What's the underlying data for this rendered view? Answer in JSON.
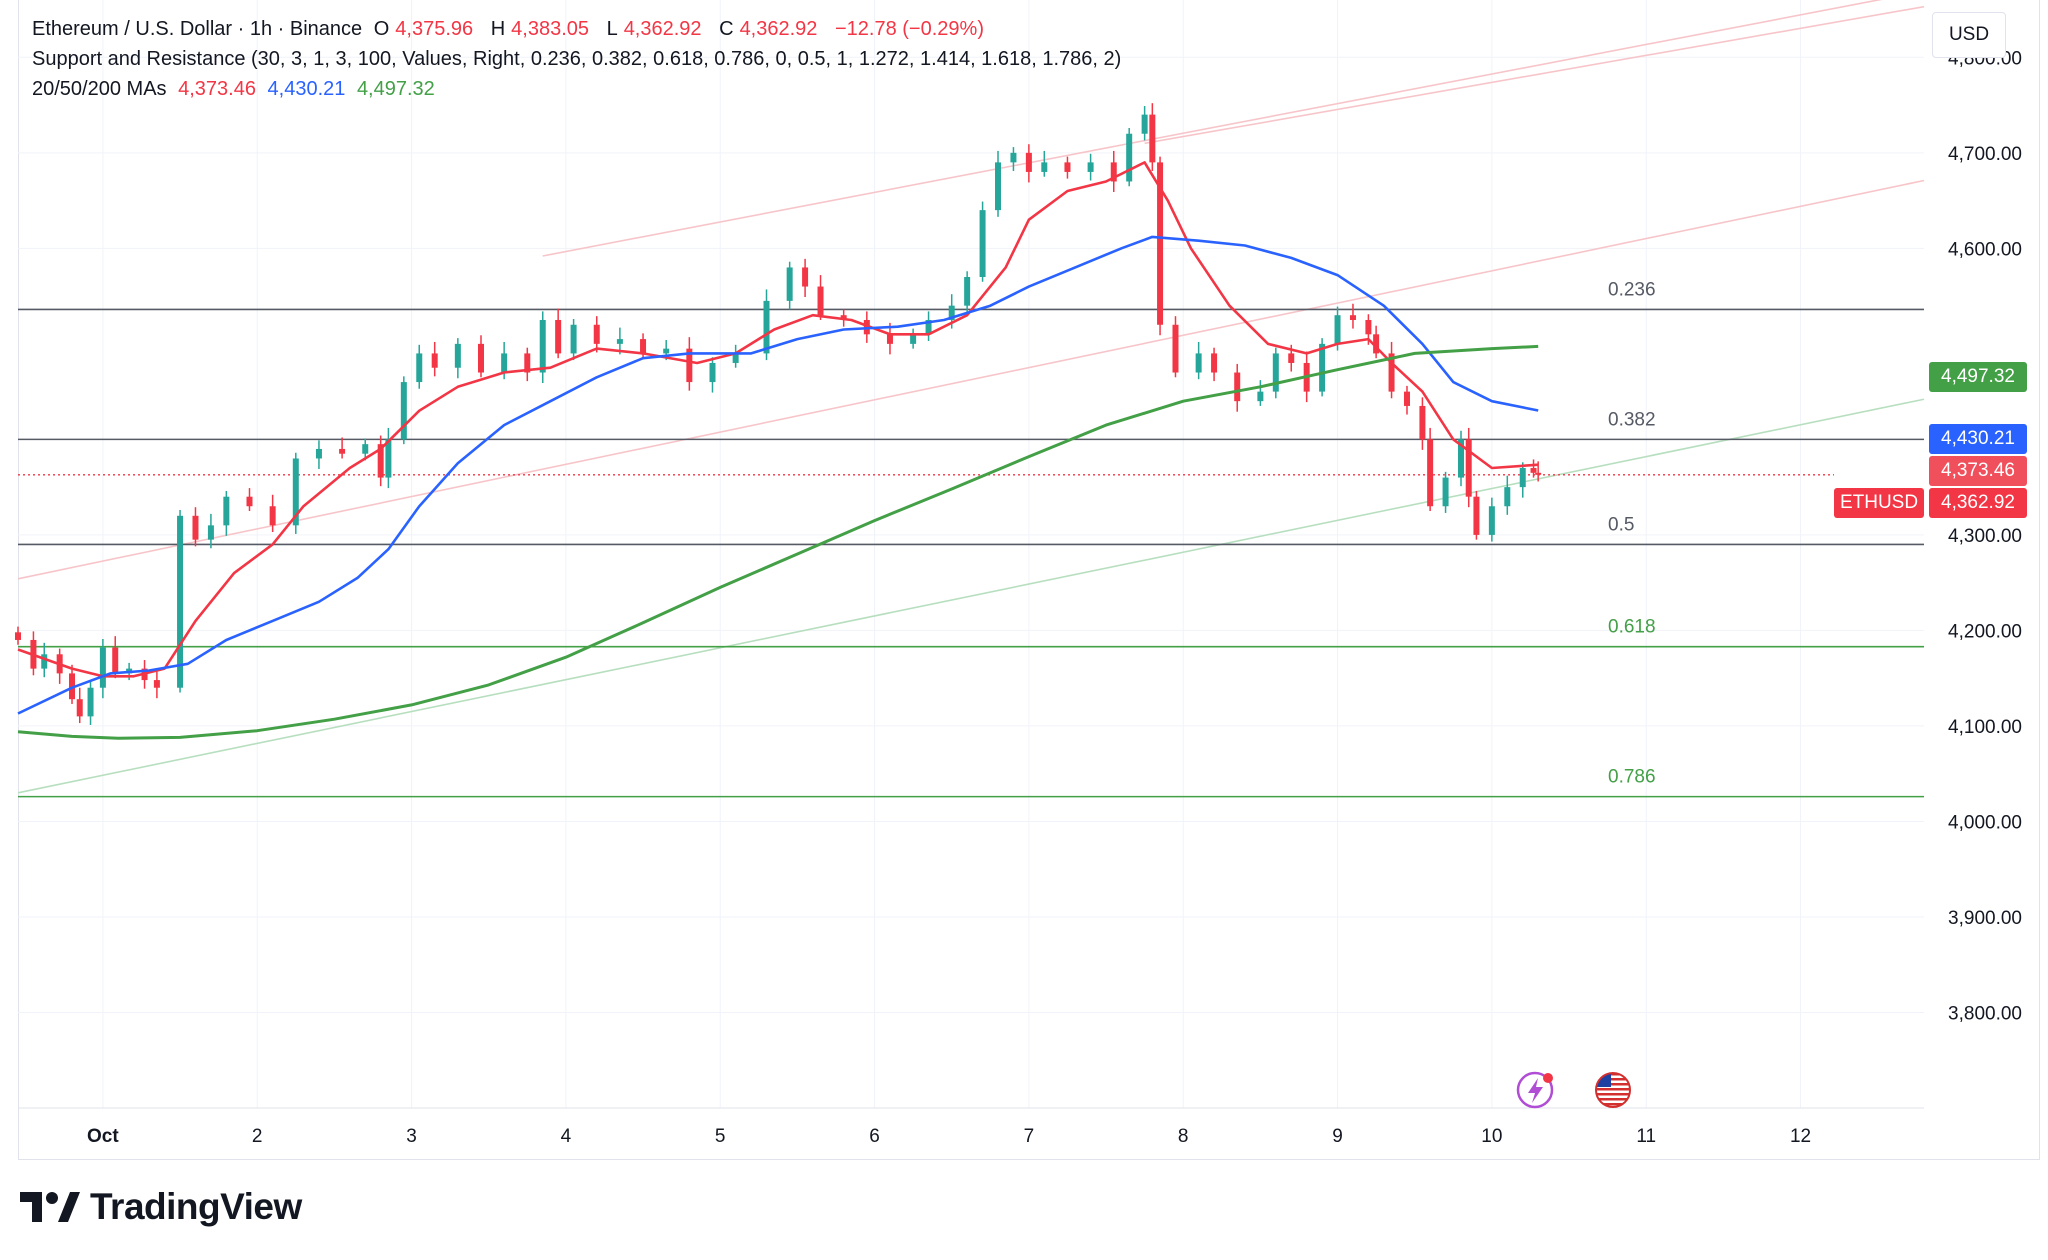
{
  "header": {
    "symbol": "Ethereum / U.S. Dollar · 1h · Binance",
    "o_label": "O",
    "o_value": "4,375.96",
    "h_label": "H",
    "h_value": "4,383.05",
    "l_label": "L",
    "l_value": "4,362.92",
    "c_label": "C",
    "c_value": "4,362.92",
    "change": "−12.78 (−0.29%)",
    "indicator": "Support and Resistance (30, 3, 1, 3, 100, Values, Right, 0.236, 0.382, 0.618, 0.786, 0, 0.5, 1, 1.272, 1.414, 1.618, 1.786, 2)",
    "ma_label": "20/50/200 MAs",
    "ma20_value": "4,373.46",
    "ma50_value": "4,430.21",
    "ma200_value": "4,497.32"
  },
  "currency": "USD",
  "price_badges": {
    "ma200": "4,497.32",
    "ma50": "4,430.21",
    "ma20": "4,373.46",
    "symbol_tag": "ETHUSD",
    "last": "4,362.92"
  },
  "brand": {
    "name": "TradingView"
  },
  "colors": {
    "up": "#26a69a",
    "down": "#f23645",
    "ma20": "#f23645",
    "ma50": "#2962ff",
    "ma200": "#43a047",
    "fib_gray": "#555a64",
    "fib_green": "#43a047"
  },
  "icons": [
    "lightning-icon",
    "us-flag-icon",
    "tradingview-logo-icon"
  ],
  "chart_data": {
    "type": "candlestick",
    "title": "Ethereum / U.S. Dollar · 1h · Binance",
    "yaxis": {
      "ylim": [
        3700,
        4860
      ],
      "ticks": [
        4800,
        4700,
        4600,
        4300,
        4200,
        4100,
        4000,
        3900,
        3800
      ],
      "tick_labels": [
        "4,800.00",
        "4,700.00",
        "4,600.00",
        "4,300.00",
        "4,200.00",
        "4,100.00",
        "4,000.00",
        "3,900.00",
        "3,800.00"
      ],
      "position": "right"
    },
    "xaxis": {
      "ticks": [
        1,
        2,
        3,
        4,
        5,
        6,
        7,
        8,
        9,
        10,
        11,
        12
      ],
      "tick_labels": [
        "Oct",
        "2",
        "3",
        "4",
        "5",
        "6",
        "7",
        "8",
        "9",
        "10",
        "11",
        "12"
      ],
      "xlim": [
        0.45,
        12.8
      ]
    },
    "grid": true,
    "fib_levels": [
      {
        "label": "0.236",
        "price": 4536,
        "color": "gray"
      },
      {
        "label": "0.382",
        "price": 4400,
        "color": "gray"
      },
      {
        "label": "0.5",
        "price": 4290,
        "color": "gray"
      },
      {
        "label": "0.618",
        "price": 4183,
        "color": "green"
      },
      {
        "label": "0.786",
        "price": 4026,
        "color": "green"
      }
    ],
    "channel_lines": [
      {
        "x": [
          0.45,
          12.8
        ],
        "y": [
          4254,
          4671
        ],
        "style": "light-red"
      },
      {
        "x": [
          3.85,
          12.6
        ],
        "y": [
          4592,
          4863
        ],
        "style": "light-red"
      },
      {
        "x": [
          7.75,
          12.8
        ],
        "y": [
          4710,
          4853
        ],
        "style": "light-red"
      },
      {
        "x": [
          0.45,
          12.8
        ],
        "y": [
          4030,
          4442
        ],
        "style": "light-green"
      }
    ],
    "series": [
      {
        "name": "ETHUSD",
        "type": "candlestick",
        "points": [
          {
            "x": 0.45,
            "y": 4190
          },
          {
            "x": 0.55,
            "y": 4160
          },
          {
            "x": 0.62,
            "y": 4175
          },
          {
            "x": 0.72,
            "y": 4155
          },
          {
            "x": 0.8,
            "y": 4128
          },
          {
            "x": 0.85,
            "y": 4110
          },
          {
            "x": 0.92,
            "y": 4140
          },
          {
            "x": 1.0,
            "y": 4182
          },
          {
            "x": 1.08,
            "y": 4155
          },
          {
            "x": 1.17,
            "y": 4160
          },
          {
            "x": 1.27,
            "y": 4148
          },
          {
            "x": 1.35,
            "y": 4140
          },
          {
            "x": 1.5,
            "y": 4320
          },
          {
            "x": 1.6,
            "y": 4295
          },
          {
            "x": 1.7,
            "y": 4310
          },
          {
            "x": 1.8,
            "y": 4340
          },
          {
            "x": 1.95,
            "y": 4330
          },
          {
            "x": 2.1,
            "y": 4310
          },
          {
            "x": 2.25,
            "y": 4380
          },
          {
            "x": 2.4,
            "y": 4390
          },
          {
            "x": 2.55,
            "y": 4385
          },
          {
            "x": 2.7,
            "y": 4395
          },
          {
            "x": 2.8,
            "y": 4360
          },
          {
            "x": 2.85,
            "y": 4400
          },
          {
            "x": 2.95,
            "y": 4460
          },
          {
            "x": 3.05,
            "y": 4490
          },
          {
            "x": 3.15,
            "y": 4475
          },
          {
            "x": 3.3,
            "y": 4500
          },
          {
            "x": 3.45,
            "y": 4470
          },
          {
            "x": 3.6,
            "y": 4490
          },
          {
            "x": 3.75,
            "y": 4470
          },
          {
            "x": 3.85,
            "y": 4525
          },
          {
            "x": 3.95,
            "y": 4490
          },
          {
            "x": 4.05,
            "y": 4520
          },
          {
            "x": 4.2,
            "y": 4500
          },
          {
            "x": 4.35,
            "y": 4505
          },
          {
            "x": 4.5,
            "y": 4490
          },
          {
            "x": 4.65,
            "y": 4495
          },
          {
            "x": 4.8,
            "y": 4460
          },
          {
            "x": 4.95,
            "y": 4480
          },
          {
            "x": 5.1,
            "y": 4490
          },
          {
            "x": 5.3,
            "y": 4545
          },
          {
            "x": 5.45,
            "y": 4580
          },
          {
            "x": 5.55,
            "y": 4560
          },
          {
            "x": 5.65,
            "y": 4530
          },
          {
            "x": 5.8,
            "y": 4525
          },
          {
            "x": 5.95,
            "y": 4510
          },
          {
            "x": 6.1,
            "y": 4500
          },
          {
            "x": 6.25,
            "y": 4510
          },
          {
            "x": 6.35,
            "y": 4525
          },
          {
            "x": 6.5,
            "y": 4540
          },
          {
            "x": 6.6,
            "y": 4570
          },
          {
            "x": 6.7,
            "y": 4640
          },
          {
            "x": 6.8,
            "y": 4690
          },
          {
            "x": 6.9,
            "y": 4700
          },
          {
            "x": 7.0,
            "y": 4680
          },
          {
            "x": 7.1,
            "y": 4690
          },
          {
            "x": 7.25,
            "y": 4680
          },
          {
            "x": 7.4,
            "y": 4690
          },
          {
            "x": 7.55,
            "y": 4670
          },
          {
            "x": 7.65,
            "y": 4720
          },
          {
            "x": 7.75,
            "y": 4740
          },
          {
            "x": 7.8,
            "y": 4690
          },
          {
            "x": 7.85,
            "y": 4520
          },
          {
            "x": 7.95,
            "y": 4470
          },
          {
            "x": 8.1,
            "y": 4490
          },
          {
            "x": 8.2,
            "y": 4470
          },
          {
            "x": 8.35,
            "y": 4440
          },
          {
            "x": 8.5,
            "y": 4450
          },
          {
            "x": 8.6,
            "y": 4490
          },
          {
            "x": 8.7,
            "y": 4480
          },
          {
            "x": 8.8,
            "y": 4450
          },
          {
            "x": 8.9,
            "y": 4500
          },
          {
            "x": 9.0,
            "y": 4530
          },
          {
            "x": 9.1,
            "y": 4525
          },
          {
            "x": 9.2,
            "y": 4510
          },
          {
            "x": 9.25,
            "y": 4490
          },
          {
            "x": 9.35,
            "y": 4450
          },
          {
            "x": 9.45,
            "y": 4435
          },
          {
            "x": 9.55,
            "y": 4400
          },
          {
            "x": 9.6,
            "y": 4330
          },
          {
            "x": 9.7,
            "y": 4360
          },
          {
            "x": 9.8,
            "y": 4400
          },
          {
            "x": 9.85,
            "y": 4340
          },
          {
            "x": 9.9,
            "y": 4300
          },
          {
            "x": 10.0,
            "y": 4330
          },
          {
            "x": 10.1,
            "y": 4350
          },
          {
            "x": 10.2,
            "y": 4370
          },
          {
            "x": 10.27,
            "y": 4365
          },
          {
            "x": 10.3,
            "y": 4362.92
          }
        ]
      },
      {
        "name": "20 MA",
        "points": [
          {
            "x": 0.45,
            "y": 4180
          },
          {
            "x": 0.8,
            "y": 4160
          },
          {
            "x": 1.0,
            "y": 4152
          },
          {
            "x": 1.2,
            "y": 4152
          },
          {
            "x": 1.4,
            "y": 4160
          },
          {
            "x": 1.6,
            "y": 4210
          },
          {
            "x": 1.85,
            "y": 4260
          },
          {
            "x": 2.1,
            "y": 4290
          },
          {
            "x": 2.3,
            "y": 4330
          },
          {
            "x": 2.6,
            "y": 4370
          },
          {
            "x": 2.8,
            "y": 4390
          },
          {
            "x": 3.05,
            "y": 4430
          },
          {
            "x": 3.3,
            "y": 4455
          },
          {
            "x": 3.6,
            "y": 4470
          },
          {
            "x": 3.9,
            "y": 4475
          },
          {
            "x": 4.2,
            "y": 4495
          },
          {
            "x": 4.5,
            "y": 4490
          },
          {
            "x": 4.85,
            "y": 4480
          },
          {
            "x": 5.1,
            "y": 4490
          },
          {
            "x": 5.35,
            "y": 4515
          },
          {
            "x": 5.6,
            "y": 4530
          },
          {
            "x": 5.85,
            "y": 4525
          },
          {
            "x": 6.1,
            "y": 4510
          },
          {
            "x": 6.35,
            "y": 4510
          },
          {
            "x": 6.6,
            "y": 4530
          },
          {
            "x": 6.85,
            "y": 4580
          },
          {
            "x": 7.0,
            "y": 4630
          },
          {
            "x": 7.25,
            "y": 4660
          },
          {
            "x": 7.5,
            "y": 4670
          },
          {
            "x": 7.75,
            "y": 4690
          },
          {
            "x": 7.9,
            "y": 4650
          },
          {
            "x": 8.05,
            "y": 4600
          },
          {
            "x": 8.3,
            "y": 4540
          },
          {
            "x": 8.55,
            "y": 4500
          },
          {
            "x": 8.8,
            "y": 4490
          },
          {
            "x": 9.0,
            "y": 4500
          },
          {
            "x": 9.2,
            "y": 4505
          },
          {
            "x": 9.35,
            "y": 4480
          },
          {
            "x": 9.55,
            "y": 4450
          },
          {
            "x": 9.75,
            "y": 4400
          },
          {
            "x": 10.0,
            "y": 4370
          },
          {
            "x": 10.3,
            "y": 4373.46
          }
        ]
      },
      {
        "name": "50 MA",
        "points": [
          {
            "x": 0.45,
            "y": 4113
          },
          {
            "x": 0.8,
            "y": 4140
          },
          {
            "x": 1.05,
            "y": 4155
          },
          {
            "x": 1.3,
            "y": 4158
          },
          {
            "x": 1.55,
            "y": 4165
          },
          {
            "x": 1.8,
            "y": 4190
          },
          {
            "x": 2.1,
            "y": 4210
          },
          {
            "x": 2.4,
            "y": 4230
          },
          {
            "x": 2.65,
            "y": 4255
          },
          {
            "x": 2.85,
            "y": 4285
          },
          {
            "x": 3.05,
            "y": 4330
          },
          {
            "x": 3.3,
            "y": 4375
          },
          {
            "x": 3.6,
            "y": 4415
          },
          {
            "x": 3.9,
            "y": 4440
          },
          {
            "x": 4.2,
            "y": 4465
          },
          {
            "x": 4.5,
            "y": 4485
          },
          {
            "x": 4.8,
            "y": 4490
          },
          {
            "x": 5.2,
            "y": 4490
          },
          {
            "x": 5.5,
            "y": 4505
          },
          {
            "x": 5.8,
            "y": 4515
          },
          {
            "x": 6.15,
            "y": 4518
          },
          {
            "x": 6.45,
            "y": 4525
          },
          {
            "x": 6.75,
            "y": 4540
          },
          {
            "x": 7.0,
            "y": 4560
          },
          {
            "x": 7.3,
            "y": 4580
          },
          {
            "x": 7.6,
            "y": 4600
          },
          {
            "x": 7.8,
            "y": 4612
          },
          {
            "x": 8.1,
            "y": 4608
          },
          {
            "x": 8.4,
            "y": 4603
          },
          {
            "x": 8.7,
            "y": 4590
          },
          {
            "x": 9.0,
            "y": 4572
          },
          {
            "x": 9.3,
            "y": 4540
          },
          {
            "x": 9.55,
            "y": 4500
          },
          {
            "x": 9.75,
            "y": 4460
          },
          {
            "x": 10.0,
            "y": 4440
          },
          {
            "x": 10.3,
            "y": 4430.21
          }
        ]
      },
      {
        "name": "200 MA",
        "points": [
          {
            "x": 0.45,
            "y": 4094
          },
          {
            "x": 0.8,
            "y": 4089
          },
          {
            "x": 1.1,
            "y": 4087
          },
          {
            "x": 1.5,
            "y": 4088
          },
          {
            "x": 2.0,
            "y": 4095
          },
          {
            "x": 2.5,
            "y": 4107
          },
          {
            "x": 3.0,
            "y": 4122
          },
          {
            "x": 3.5,
            "y": 4143
          },
          {
            "x": 4.0,
            "y": 4172
          },
          {
            "x": 4.5,
            "y": 4208
          },
          {
            "x": 5.0,
            "y": 4245
          },
          {
            "x": 5.5,
            "y": 4280
          },
          {
            "x": 6.0,
            "y": 4315
          },
          {
            "x": 6.5,
            "y": 4348
          },
          {
            "x": 7.0,
            "y": 4382
          },
          {
            "x": 7.5,
            "y": 4415
          },
          {
            "x": 8.0,
            "y": 4440
          },
          {
            "x": 8.5,
            "y": 4455
          },
          {
            "x": 9.0,
            "y": 4473
          },
          {
            "x": 9.5,
            "y": 4490
          },
          {
            "x": 10.0,
            "y": 4495
          },
          {
            "x": 10.3,
            "y": 4497.32
          }
        ]
      }
    ]
  }
}
